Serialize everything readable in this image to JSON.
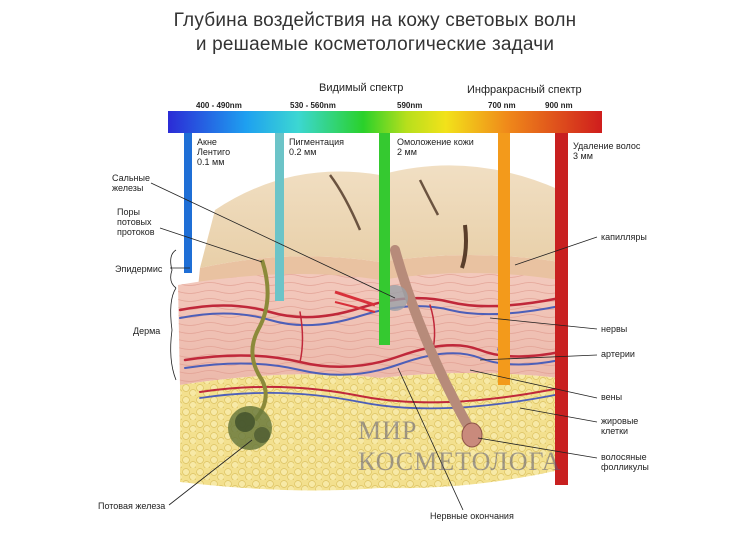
{
  "title_line1": "Глубина воздействия на кожу световых волн",
  "title_line2": "и решаемые косметологические задачи",
  "spectrum": {
    "visible_label": "Видимый спектр",
    "infrared_label": "Инфракрасный спектр",
    "wavelengths": [
      "400 - 490nm",
      "530 - 560nm",
      "590nm",
      "700 nm",
      "900 nm"
    ]
  },
  "bands": [
    {
      "line1": "Акне",
      "line2": "Лентиго",
      "line3": "0.1 мм",
      "color": "#1f6fd6"
    },
    {
      "line1": "Пигментация",
      "line2": "0.2 мм",
      "line3": "",
      "color": "#6cc4c8"
    },
    {
      "line1": "Омоложение кожи",
      "line2": "2 мм",
      "line3": "",
      "color": "#35c930"
    },
    {
      "line1": "",
      "line2": "",
      "line3": "",
      "color": "#f39a1b"
    },
    {
      "line1": "Удаление волос",
      "line2": "3 мм",
      "line3": "",
      "color": "#c82020"
    }
  ],
  "left_labels": {
    "sebaceous": [
      "Сальные",
      "железы"
    ],
    "pores": [
      "Поры",
      "потовых",
      "протоков"
    ],
    "epidermis": "Эпидермис",
    "dermis": "Дерма",
    "sweat_gland": "Потовая железа"
  },
  "right_labels": {
    "capillaries": "капилляры",
    "nerves": "нервы",
    "arteries": "артерии",
    "veins": "вены",
    "fat": [
      "жировые",
      "клетки"
    ],
    "follicles": [
      "волосяные",
      "фолликулы"
    ]
  },
  "bottom_label": "Нервные окончания",
  "watermark": [
    "МИР",
    "КОСМЕТОЛОГА"
  ]
}
